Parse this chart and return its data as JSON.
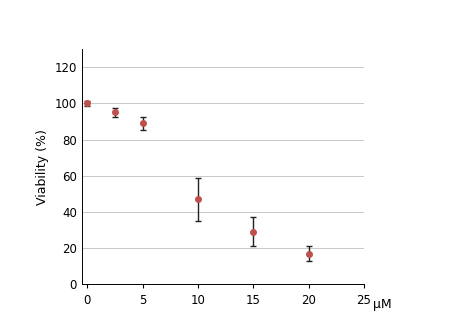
{
  "x": [
    0,
    2.5,
    5,
    10,
    15,
    20
  ],
  "y": [
    100,
    95,
    89,
    47,
    29,
    17
  ],
  "yerr": [
    1.5,
    2.5,
    3.5,
    12,
    8,
    4
  ],
  "line_color": "#c0504d",
  "marker_color": "#c0504d",
  "marker_style": "o",
  "marker_size": 4,
  "line_width": 1.5,
  "xlabel": "μM",
  "ylabel": "Viability (%)",
  "xlim": [
    -0.5,
    25
  ],
  "ylim": [
    0,
    130
  ],
  "xticks": [
    0,
    5,
    10,
    15,
    20,
    25
  ],
  "yticks": [
    0,
    20,
    40,
    60,
    80,
    100,
    120
  ],
  "background_color": "#ffffff",
  "grid_color": "#c8c8c8",
  "ecolor": "#222222",
  "capsize": 2.5,
  "elinewidth": 1.0
}
